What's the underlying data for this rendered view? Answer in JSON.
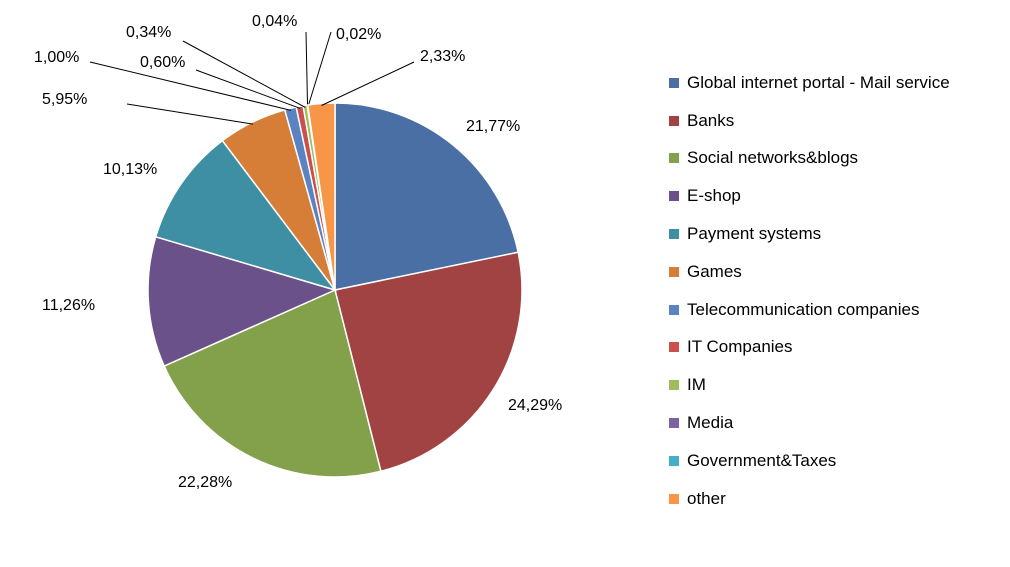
{
  "chart_data": {
    "type": "pie",
    "slices": [
      {
        "label": "Global internet portal - Mail service",
        "value": 21.77,
        "display": "21,77%",
        "color": "#4A6FA5"
      },
      {
        "label": "Banks",
        "value": 24.29,
        "display": "24,29%",
        "color": "#A14343"
      },
      {
        "label": "Social networks&blogs",
        "value": 22.28,
        "display": "22,28%",
        "color": "#83A04A"
      },
      {
        "label": "E-shop",
        "value": 11.26,
        "display": "11,26%",
        "color": "#6B5189"
      },
      {
        "label": "Payment systems",
        "value": 10.13,
        "display": "10,13%",
        "color": "#3E8FA4"
      },
      {
        "label": "Games",
        "value": 5.95,
        "display": "5,95%",
        "color": "#D67E38"
      },
      {
        "label": "Telecommunication companies",
        "value": 1.0,
        "display": "1,00%",
        "color": "#5B83C2"
      },
      {
        "label": "IT Companies",
        "value": 0.6,
        "display": "0,60%",
        "color": "#C9504E"
      },
      {
        "label": "IM",
        "value": 0.34,
        "display": "0,34%",
        "color": "#9FBD5A"
      },
      {
        "label": "Media",
        "value": 0.04,
        "display": "0,04%",
        "color": "#7B63A0"
      },
      {
        "label": "Government&Taxes",
        "value": 0.02,
        "display": "0,02%",
        "color": "#46AFC8"
      },
      {
        "label": "other",
        "value": 2.33,
        "display": "2,33%",
        "color": "#F79646"
      }
    ],
    "start_angle": "12 o'clock",
    "direction": "clockwise",
    "legend_position": "right"
  }
}
